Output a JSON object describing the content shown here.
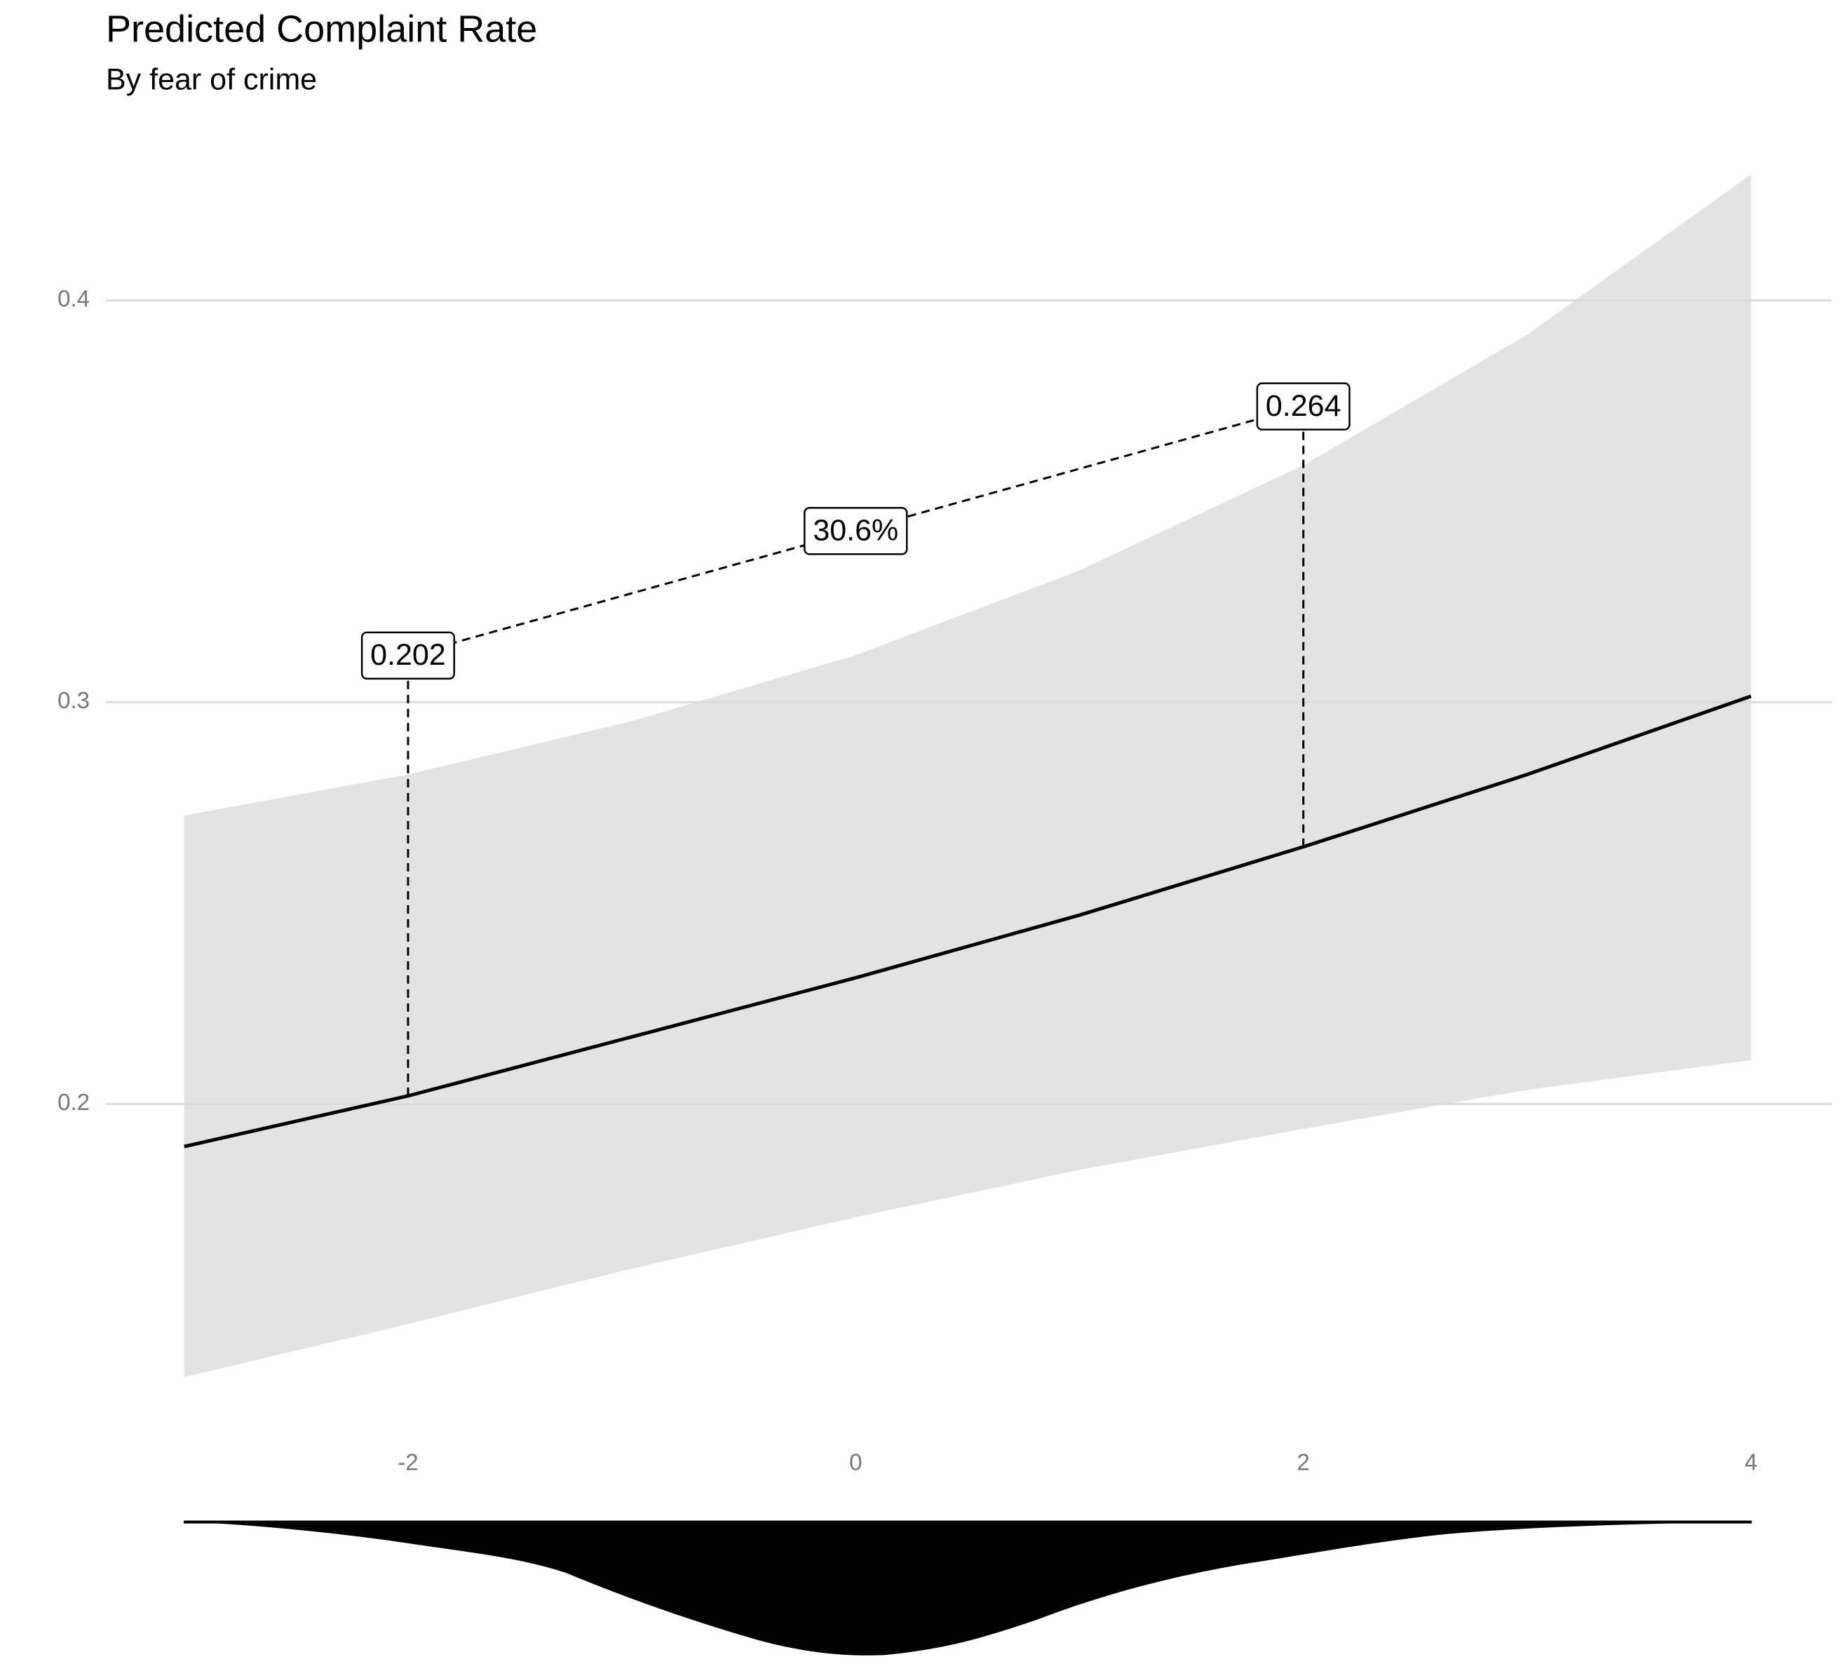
{
  "chart_data": {
    "type": "line",
    "title": "Predicted Complaint Rate",
    "subtitle": "By fear of crime",
    "x": [
      -3,
      -2,
      -1,
      0,
      1,
      2,
      3,
      4
    ],
    "series": [
      {
        "values": [
          0.1894,
          0.202,
          0.2167,
          0.2314,
          0.247,
          0.264,
          0.282,
          0.3015
        ],
        "color": "#000000",
        "lower": [
          0.132,
          0.1452,
          0.159,
          0.1718,
          0.1836,
          0.1938,
          0.2035,
          0.2109
        ],
        "upper": [
          0.2718,
          0.282,
          0.2953,
          0.3117,
          0.3328,
          0.359,
          0.3915,
          0.4314
        ],
        "band_color": "#e0e0e0"
      }
    ],
    "xlim": [
      -3.35,
      4.36
    ],
    "ylim": [
      0.125,
      0.435
    ],
    "xticks": [
      -2,
      0,
      2,
      4
    ],
    "yticks": [
      0.2,
      0.3,
      0.4
    ],
    "grid": true,
    "annotations": [
      {
        "x": -2,
        "value": 0.202,
        "label": "0.202"
      },
      {
        "x": 2,
        "value": 0.264,
        "label": "0.264"
      }
    ],
    "change": {
      "value": 30.6,
      "label": "30.6%"
    }
  }
}
